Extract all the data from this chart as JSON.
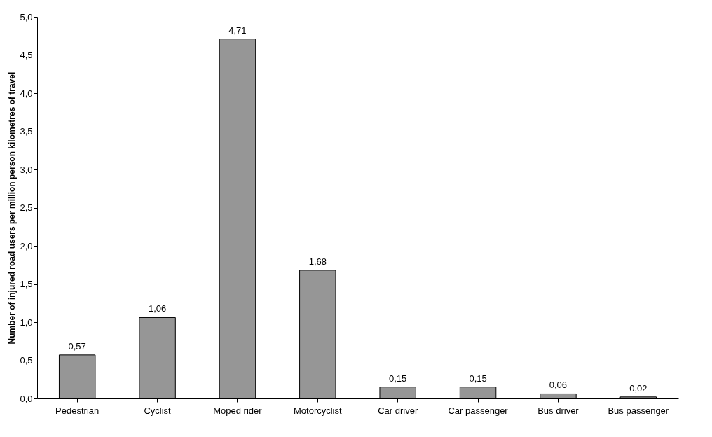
{
  "chart_data": {
    "type": "bar",
    "ylabel": "Number of injured road users per million person kilometres of travel",
    "categories": [
      "Pedestrian",
      "Cyclist",
      "Moped rider",
      "Motorcyclist",
      "Car driver",
      "Car passenger",
      "Bus driver",
      "Bus passenger"
    ],
    "values": [
      0.57,
      1.06,
      4.71,
      1.68,
      0.15,
      0.15,
      0.06,
      0.02
    ],
    "value_labels": [
      "0,57",
      "1,06",
      "4,71",
      "1,68",
      "0,15",
      "0,15",
      "0,06",
      "0,02"
    ],
    "color": "#969696",
    "ylim": [
      0,
      5
    ],
    "yticks": [
      {
        "value": 0,
        "label": "0,0"
      },
      {
        "value": 0.5,
        "label": "0,5"
      },
      {
        "value": 1,
        "label": "1,0"
      },
      {
        "value": 1.5,
        "label": "1,5"
      },
      {
        "value": 2,
        "label": "2,0"
      },
      {
        "value": 2.5,
        "label": "2,5"
      },
      {
        "value": 3,
        "label": "3,0"
      },
      {
        "value": 3.5,
        "label": "3,5"
      },
      {
        "value": 4,
        "label": "4,0"
      },
      {
        "value": 4.5,
        "label": "4,5"
      },
      {
        "value": 5,
        "label": "5,0"
      }
    ],
    "grid": false
  }
}
